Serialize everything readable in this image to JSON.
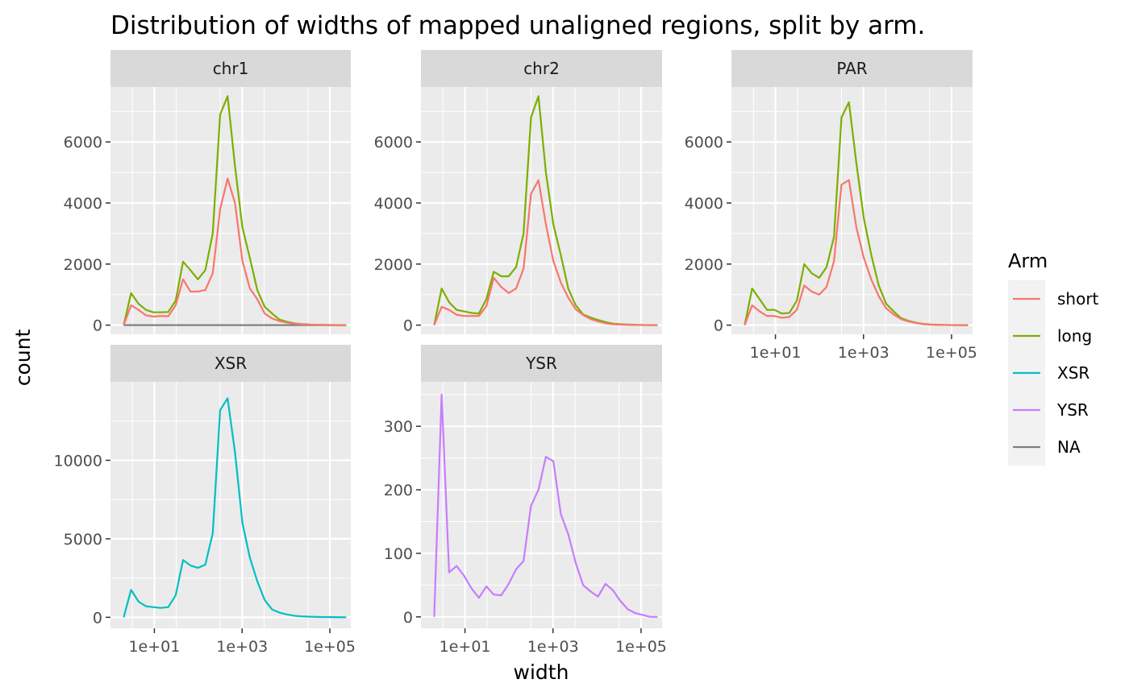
{
  "chart_data": {
    "type": "line",
    "title": "Distribution of widths of mapped unaligned regions, split by arm.",
    "xlabel": "width",
    "ylabel": "count",
    "x_scale": "log10",
    "x_range": [
      1,
      300000
    ],
    "x_ticks": [
      10,
      1000,
      100000
    ],
    "x_tick_labels": [
      "1e+01",
      "1e+03",
      "1e+05"
    ],
    "x_values": [
      2,
      2.95,
      4.36,
      6.44,
      9.5,
      14,
      20.7,
      30.6,
      45.1,
      66.6,
      98.3,
      145,
      214,
      316,
      467,
      689,
      1017,
      1501,
      2216,
      3272,
      4830,
      7130,
      10525,
      15537,
      22936,
      33857,
      49980,
      73780,
      108913,
      160777,
      237334
    ],
    "grid": true,
    "legend": {
      "title": "Arm",
      "placement": "right",
      "entries": [
        {
          "name": "short",
          "color": "#F8766D"
        },
        {
          "name": "long",
          "color": "#7CAE00"
        },
        {
          "name": "XSR",
          "color": "#00BFC4"
        },
        {
          "name": "YSR",
          "color": "#C77CFF"
        },
        {
          "name": "NA",
          "color": "#808080"
        }
      ]
    },
    "panels": [
      {
        "name": "chr1",
        "ylim": [
          -300,
          7800
        ],
        "y_ticks": [
          0,
          2000,
          4000,
          6000
        ],
        "series": [
          {
            "name": "short",
            "color": "#F8766D",
            "values": [
              0,
              650,
              500,
              320,
              280,
              300,
              290,
              650,
              1500,
              1100,
              1100,
              1150,
              1700,
              3800,
              4800,
              4000,
              2100,
              1200,
              850,
              380,
              220,
              130,
              80,
              50,
              25,
              15,
              10,
              5,
              2,
              1,
              0
            ]
          },
          {
            "name": "long",
            "color": "#7CAE00",
            "values": [
              0,
              1050,
              700,
              500,
              420,
              420,
              430,
              800,
              2080,
              1800,
              1500,
              1800,
              3000,
              6900,
              7500,
              5200,
              3200,
              2200,
              1150,
              600,
              380,
              180,
              110,
              60,
              35,
              20,
              12,
              6,
              3,
              1,
              0
            ]
          },
          {
            "name": "NA",
            "color": "#808080",
            "values": [
              0,
              0,
              0,
              0,
              0,
              0,
              0,
              0,
              0,
              0,
              0,
              0,
              0,
              0,
              0,
              0,
              0,
              0,
              0,
              0,
              0,
              0,
              0,
              0,
              0,
              0,
              0,
              0,
              0,
              0,
              0
            ]
          }
        ]
      },
      {
        "name": "chr2",
        "ylim": [
          -300,
          7800
        ],
        "y_ticks": [
          0,
          2000,
          4000,
          6000
        ],
        "series": [
          {
            "name": "short",
            "color": "#F8766D",
            "values": [
              0,
              600,
              500,
              340,
              300,
              300,
              300,
              620,
              1550,
              1250,
              1050,
              1200,
              1850,
              4300,
              4750,
              3300,
              2100,
              1400,
              900,
              520,
              330,
              200,
              120,
              60,
              30,
              18,
              10,
              5,
              2,
              1,
              0
            ]
          },
          {
            "name": "long",
            "color": "#7CAE00",
            "values": [
              0,
              1200,
              750,
              500,
              450,
              400,
              380,
              850,
              1750,
              1600,
              1600,
              1900,
              3000,
              6800,
              7500,
              5000,
              3300,
              2300,
              1200,
              650,
              350,
              250,
              170,
              100,
              50,
              30,
              20,
              10,
              5,
              2,
              0
            ]
          }
        ]
      },
      {
        "name": "PAR",
        "ylim": [
          -300,
          7800
        ],
        "y_ticks": [
          0,
          2000,
          4000,
          6000
        ],
        "series": [
          {
            "name": "short",
            "color": "#F8766D",
            "values": [
              0,
              650,
              450,
              300,
              300,
              240,
              270,
              500,
              1300,
              1100,
              1000,
              1250,
              2100,
              4600,
              4750,
              3200,
              2200,
              1500,
              950,
              550,
              350,
              200,
              120,
              70,
              30,
              15,
              10,
              5,
              2,
              1,
              0
            ]
          },
          {
            "name": "long",
            "color": "#7CAE00",
            "values": [
              0,
              1200,
              850,
              500,
              500,
              380,
              400,
              800,
              2000,
              1700,
              1550,
              1900,
              2900,
              6800,
              7300,
              5300,
              3500,
              2300,
              1300,
              700,
              450,
              230,
              140,
              80,
              40,
              20,
              10,
              5,
              2,
              1,
              0
            ]
          }
        ]
      },
      {
        "name": "XSR",
        "ylim": [
          -700,
          15000
        ],
        "y_ticks": [
          0,
          5000,
          10000
        ],
        "series": [
          {
            "name": "XSR",
            "color": "#00BFC4",
            "values": [
              0,
              1750,
              1000,
              700,
              650,
              600,
              650,
              1400,
              3650,
              3300,
              3150,
              3350,
              5350,
              13200,
              13950,
              10500,
              6000,
              3800,
              2300,
              1100,
              500,
              300,
              180,
              100,
              60,
              40,
              25,
              15,
              10,
              5,
              3
            ]
          }
        ]
      },
      {
        "name": "YSR",
        "ylim": [
          -18,
          370
        ],
        "y_ticks": [
          0,
          100,
          200,
          300
        ],
        "series": [
          {
            "name": "YSR",
            "color": "#C77CFF",
            "values": [
              0,
              350,
              70,
              80,
              65,
              45,
              30,
              48,
              35,
              34,
              52,
              75,
              88,
              175,
              200,
              252,
              245,
              162,
              130,
              85,
              50,
              40,
              32,
              52,
              42,
              25,
              12,
              6,
              3,
              0,
              0
            ]
          }
        ]
      }
    ]
  }
}
